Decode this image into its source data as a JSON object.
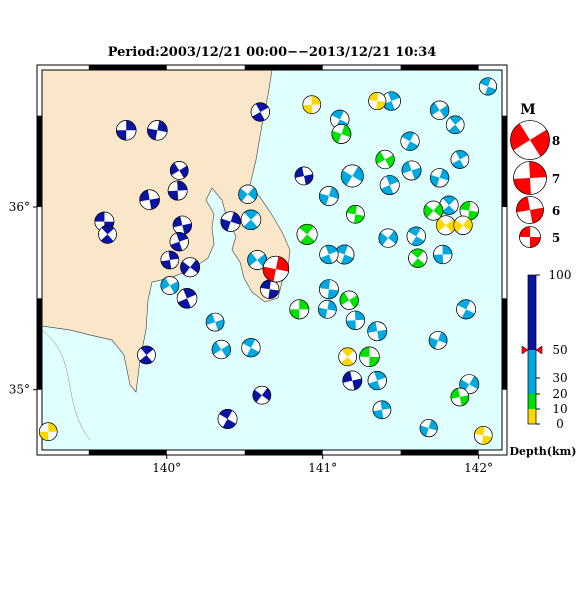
{
  "chart_data": {
    "type": "focal-mechanism-map",
    "title": "Period:2003/12/21 00:00−−2013/12/21 10:34",
    "xlim": [
      139.2,
      142.15
    ],
    "ylim": [
      34.67,
      36.75
    ],
    "xticks": [
      {
        "value": 140,
        "label": "140°"
      },
      {
        "value": 141,
        "label": "141°"
      },
      {
        "value": 142,
        "label": "142°"
      }
    ],
    "yticks": [
      {
        "value": 35,
        "label": "35°"
      },
      {
        "value": 36,
        "label": "36°"
      }
    ],
    "magnitude_legend": {
      "title": "M",
      "values": [
        8,
        7,
        6,
        5
      ]
    },
    "depth_legend": {
      "title": "Depth(km)",
      "ticks": [
        100,
        50,
        30,
        20,
        10,
        0
      ],
      "colors": [
        "#0a14a0",
        "#00a8e0",
        "#00a8e0",
        "#00e000",
        "#ffd700"
      ]
    },
    "mainshock": {
      "lon": 140.7,
      "lat": 35.66,
      "depth": 50,
      "mag": 5.8,
      "color": "#ff0000"
    },
    "events": [
      {
        "lon": 139.74,
        "lat": 36.42,
        "depth": 70,
        "mag": 4.8
      },
      {
        "lon": 139.94,
        "lat": 36.42,
        "depth": 70,
        "mag": 4.8
      },
      {
        "lon": 140.08,
        "lat": 36.2,
        "depth": 70,
        "mag": 4.5
      },
      {
        "lon": 140.07,
        "lat": 36.09,
        "depth": 70,
        "mag": 4.7
      },
      {
        "lon": 139.89,
        "lat": 36.04,
        "depth": 70,
        "mag": 4.8
      },
      {
        "lon": 139.6,
        "lat": 35.92,
        "depth": 70,
        "mag": 4.7
      },
      {
        "lon": 139.62,
        "lat": 35.85,
        "depth": 70,
        "mag": 4.5
      },
      {
        "lon": 140.1,
        "lat": 35.9,
        "depth": 70,
        "mag": 4.6
      },
      {
        "lon": 140.08,
        "lat": 35.81,
        "depth": 70,
        "mag": 4.6
      },
      {
        "lon": 140.02,
        "lat": 35.71,
        "depth": 70,
        "mag": 4.5
      },
      {
        "lon": 140.15,
        "lat": 35.67,
        "depth": 70,
        "mag": 4.7
      },
      {
        "lon": 140.13,
        "lat": 35.5,
        "depth": 70,
        "mag": 4.8
      },
      {
        "lon": 140.02,
        "lat": 35.57,
        "depth": 40,
        "mag": 4.5
      },
      {
        "lon": 140.31,
        "lat": 35.37,
        "depth": 40,
        "mag": 4.5
      },
      {
        "lon": 140.54,
        "lat": 35.23,
        "depth": 40,
        "mag": 4.6
      },
      {
        "lon": 140.35,
        "lat": 35.22,
        "depth": 40,
        "mag": 4.6
      },
      {
        "lon": 139.87,
        "lat": 35.19,
        "depth": 70,
        "mag": 4.5
      },
      {
        "lon": 140.6,
        "lat": 36.52,
        "depth": 70,
        "mag": 4.6
      },
      {
        "lon": 140.41,
        "lat": 35.92,
        "depth": 70,
        "mag": 4.8
      },
      {
        "lon": 140.54,
        "lat": 35.93,
        "depth": 40,
        "mag": 4.8
      },
      {
        "lon": 140.52,
        "lat": 36.07,
        "depth": 40,
        "mag": 4.6
      },
      {
        "lon": 140.58,
        "lat": 35.71,
        "depth": 40,
        "mag": 4.7
      },
      {
        "lon": 140.66,
        "lat": 35.55,
        "depth": 70,
        "mag": 4.6
      },
      {
        "lon": 140.61,
        "lat": 34.97,
        "depth": 70,
        "mag": 4.5
      },
      {
        "lon": 140.39,
        "lat": 34.84,
        "depth": 70,
        "mag": 4.7
      },
      {
        "lon": 140.9,
        "lat": 35.85,
        "depth": 15,
        "mag": 4.9
      },
      {
        "lon": 140.93,
        "lat": 36.56,
        "depth": 5,
        "mag": 4.5
      },
      {
        "lon": 141.11,
        "lat": 36.48,
        "depth": 40,
        "mag": 4.6
      },
      {
        "lon": 141.12,
        "lat": 36.4,
        "depth": 15,
        "mag": 4.7
      },
      {
        "lon": 141.19,
        "lat": 36.17,
        "depth": 40,
        "mag": 5.2
      },
      {
        "lon": 140.88,
        "lat": 36.17,
        "depth": 70,
        "mag": 4.5
      },
      {
        "lon": 141.04,
        "lat": 36.06,
        "depth": 40,
        "mag": 4.7
      },
      {
        "lon": 141.21,
        "lat": 35.96,
        "depth": 15,
        "mag": 4.5
      },
      {
        "lon": 141.14,
        "lat": 35.74,
        "depth": 40,
        "mag": 4.7
      },
      {
        "lon": 141.04,
        "lat": 35.74,
        "depth": 40,
        "mag": 4.6
      },
      {
        "lon": 141.04,
        "lat": 35.55,
        "depth": 40,
        "mag": 4.7
      },
      {
        "lon": 140.85,
        "lat": 35.44,
        "depth": 15,
        "mag": 4.7
      },
      {
        "lon": 141.03,
        "lat": 35.44,
        "depth": 40,
        "mag": 4.5
      },
      {
        "lon": 141.17,
        "lat": 35.49,
        "depth": 15,
        "mag": 4.6
      },
      {
        "lon": 141.21,
        "lat": 35.38,
        "depth": 40,
        "mag": 4.6
      },
      {
        "lon": 141.35,
        "lat": 35.32,
        "depth": 40,
        "mag": 4.7
      },
      {
        "lon": 141.3,
        "lat": 35.18,
        "depth": 15,
        "mag": 4.8
      },
      {
        "lon": 141.16,
        "lat": 35.18,
        "depth": 5,
        "mag": 4.5
      },
      {
        "lon": 141.19,
        "lat": 35.05,
        "depth": 70,
        "mag": 4.7
      },
      {
        "lon": 141.35,
        "lat": 35.05,
        "depth": 40,
        "mag": 4.6
      },
      {
        "lon": 141.38,
        "lat": 34.89,
        "depth": 40,
        "mag": 4.5
      },
      {
        "lon": 141.42,
        "lat": 35.83,
        "depth": 40,
        "mag": 4.6
      },
      {
        "lon": 141.43,
        "lat": 36.12,
        "depth": 40,
        "mag": 4.7
      },
      {
        "lon": 141.4,
        "lat": 36.26,
        "depth": 15,
        "mag": 4.6
      },
      {
        "lon": 141.57,
        "lat": 36.2,
        "depth": 40,
        "mag": 4.7
      },
      {
        "lon": 141.56,
        "lat": 36.36,
        "depth": 40,
        "mag": 4.6
      },
      {
        "lon": 141.75,
        "lat": 36.53,
        "depth": 40,
        "mag": 4.6
      },
      {
        "lon": 141.85,
        "lat": 36.45,
        "depth": 40,
        "mag": 4.5
      },
      {
        "lon": 141.88,
        "lat": 36.26,
        "depth": 40,
        "mag": 4.5
      },
      {
        "lon": 141.75,
        "lat": 36.16,
        "depth": 40,
        "mag": 4.6
      },
      {
        "lon": 141.81,
        "lat": 36.01,
        "depth": 40,
        "mag": 4.6
      },
      {
        "lon": 141.71,
        "lat": 35.98,
        "depth": 15,
        "mag": 4.7
      },
      {
        "lon": 141.79,
        "lat": 35.9,
        "depth": 5,
        "mag": 4.7
      },
      {
        "lon": 141.94,
        "lat": 35.98,
        "depth": 15,
        "mag": 4.6
      },
      {
        "lon": 141.9,
        "lat": 35.9,
        "depth": 5,
        "mag": 4.6
      },
      {
        "lon": 141.6,
        "lat": 35.84,
        "depth": 40,
        "mag": 4.6
      },
      {
        "lon": 141.61,
        "lat": 35.72,
        "depth": 15,
        "mag": 4.6
      },
      {
        "lon": 141.77,
        "lat": 35.74,
        "depth": 40,
        "mag": 4.6
      },
      {
        "lon": 141.92,
        "lat": 35.44,
        "depth": 40,
        "mag": 4.7
      },
      {
        "lon": 141.74,
        "lat": 35.27,
        "depth": 40,
        "mag": 4.5
      },
      {
        "lon": 141.94,
        "lat": 35.03,
        "depth": 40,
        "mag": 4.7
      },
      {
        "lon": 141.88,
        "lat": 34.96,
        "depth": 15,
        "mag": 4.5
      },
      {
        "lon": 141.68,
        "lat": 34.79,
        "depth": 40,
        "mag": 4.4
      },
      {
        "lon": 142.03,
        "lat": 34.75,
        "depth": 5,
        "mag": 4.5
      },
      {
        "lon": 142.06,
        "lat": 36.66,
        "depth": 40,
        "mag": 4.4
      },
      {
        "lon": 141.44,
        "lat": 36.58,
        "depth": 40,
        "mag": 4.6
      },
      {
        "lon": 141.35,
        "lat": 36.58,
        "depth": 5,
        "mag": 4.4
      },
      {
        "lon": 139.24,
        "lat": 34.77,
        "depth": 5,
        "mag": 4.5
      }
    ]
  }
}
